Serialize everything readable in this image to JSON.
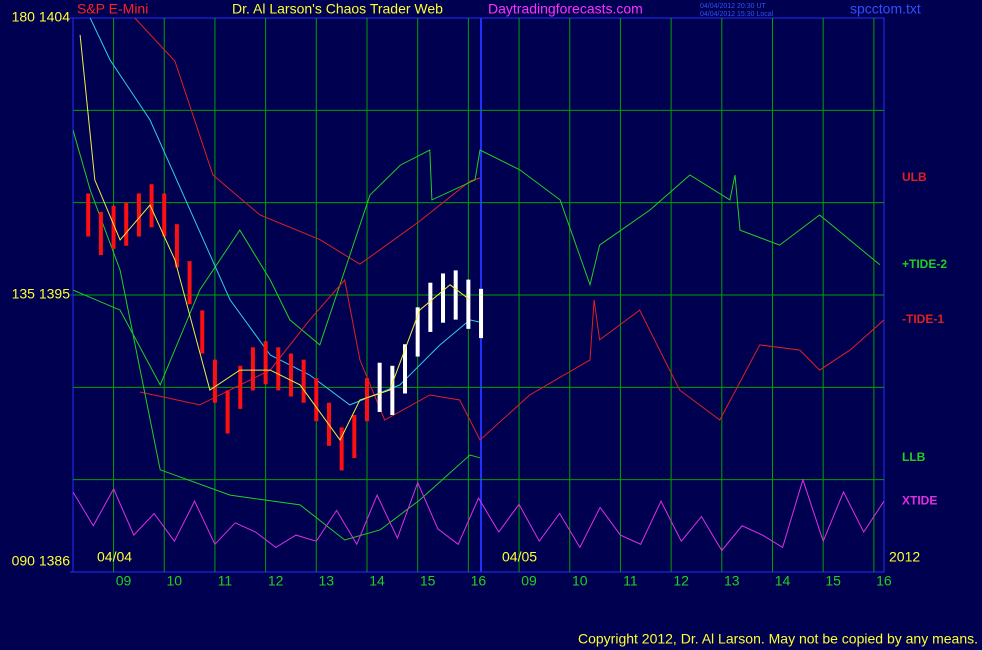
{
  "header": {
    "instrument": "S&P E-Mini",
    "title": "Dr. Al Larson's Chaos Trader Web",
    "site": "Daytradingforecasts.com",
    "stamp_ut": "04/04/2012 20:30 UT",
    "stamp_local": "04/04/2012 15:30 Local",
    "file": "spcctom.txt"
  },
  "chart_data": {
    "type": "line",
    "ylim": [
      1386,
      1404
    ],
    "yticks": [
      {
        "value": 1404,
        "label": "180 1404"
      },
      {
        "value": 1395,
        "label": "135 1395"
      },
      {
        "value": 1386,
        "label": "090 1386"
      }
    ],
    "ygrid": [
      1389,
      1392,
      1395,
      1398,
      1401
    ],
    "xlim": [
      0.2,
      16.2
    ],
    "xticks": [
      {
        "value": 1,
        "label": "09"
      },
      {
        "value": 2,
        "label": "10"
      },
      {
        "value": 3,
        "label": "11"
      },
      {
        "value": 4,
        "label": "12"
      },
      {
        "value": 5,
        "label": "13"
      },
      {
        "value": 6,
        "label": "14"
      },
      {
        "value": 7,
        "label": "15"
      },
      {
        "value": 8,
        "label": "16"
      },
      {
        "value": 9,
        "label": "09"
      },
      {
        "value": 10,
        "label": "10"
      },
      {
        "value": 11,
        "label": "11"
      },
      {
        "value": 12,
        "label": "12"
      },
      {
        "value": 13,
        "label": "13"
      },
      {
        "value": 14,
        "label": "14"
      },
      {
        "value": 15,
        "label": "15"
      },
      {
        "value": 16,
        "label": "16"
      }
    ],
    "grid": true,
    "date_labels": [
      "04/04",
      "04/05",
      "2012"
    ],
    "series": [
      {
        "name": "ULB",
        "color": "#e02020",
        "x": [
          1.42,
          2.21,
          2.96,
          3.89,
          5.07,
          5.86,
          7.04,
          8.03,
          8.23
        ],
        "values": [
          1404,
          1402.6,
          1398.9,
          1397.6,
          1396.8,
          1396.0,
          1397.4,
          1398.7,
          1398.8
        ]
      },
      {
        "name": "+TIDE-2",
        "color": "#20d020",
        "x": [
          0.2,
          1.13,
          1.92,
          2.7,
          3.49,
          4.09,
          4.48,
          5.07,
          6.06,
          6.66,
          7.24,
          7.28,
          8.13,
          8.23,
          9.02,
          9.81,
          10.4,
          10.59,
          11.58,
          12.37,
          13.16,
          13.26,
          13.36,
          14.14,
          14.93,
          16.12
        ],
        "values": [
          1395.16,
          1394.51,
          1392.08,
          1395.16,
          1397.11,
          1395.49,
          1394.19,
          1393.38,
          1398.25,
          1399.22,
          1399.71,
          1398.09,
          1398.74,
          1399.71,
          1399.06,
          1398.09,
          1395.33,
          1396.62,
          1397.76,
          1398.9,
          1398.09,
          1398.9,
          1397.11,
          1396.62,
          1397.6,
          1395.98
        ]
      },
      {
        "name": "-TIDE-1",
        "color": "#e02020",
        "x": [
          1.52,
          2.7,
          4.09,
          4.87,
          5.56,
          5.86,
          6.35,
          7.24,
          7.83,
          8.23,
          9.21,
          10.4,
          10.48,
          10.59,
          11.38,
          12.17,
          12.96,
          13.75,
          14.54,
          14.93,
          15.53,
          16.2
        ],
        "values": [
          1391.85,
          1391.43,
          1392.56,
          1394.19,
          1395.49,
          1392.89,
          1390.94,
          1391.75,
          1391.59,
          1390.29,
          1391.75,
          1392.89,
          1394.84,
          1393.54,
          1394.51,
          1391.91,
          1390.94,
          1393.38,
          1393.21,
          1392.56,
          1393.21,
          1394.19
        ]
      },
      {
        "name": "LLB",
        "color": "#20d020",
        "x": [
          0.2,
          0.54,
          1.13,
          1.92,
          3.3,
          4.68,
          5.56,
          6.26,
          7.04,
          8.03,
          8.23
        ],
        "values": [
          1400.36,
          1398.41,
          1395.81,
          1389.32,
          1388.5,
          1388.18,
          1387.04,
          1387.37,
          1388.34,
          1389.8,
          1389.71
        ]
      },
      {
        "name": "XTIDE",
        "color": "#e030e0",
        "x": [
          0.2,
          0.6,
          1.0,
          1.4,
          1.8,
          2.2,
          2.6,
          3.0,
          3.4,
          3.8,
          4.2,
          4.6,
          5.0,
          5.4,
          5.8,
          6.2,
          6.6,
          7.0,
          7.4,
          7.8,
          8.2,
          8.6,
          9.0,
          9.4,
          9.8,
          10.2,
          10.6,
          11.0,
          11.4,
          11.8,
          12.2,
          12.6,
          13.0,
          13.4,
          13.8,
          14.2,
          14.6,
          15.0,
          15.4,
          15.8,
          16.2
        ],
        "values": [
          1388.6,
          1387.5,
          1388.7,
          1387.2,
          1387.9,
          1387.0,
          1388.3,
          1386.9,
          1387.6,
          1387.3,
          1386.8,
          1387.2,
          1387.0,
          1388.0,
          1386.9,
          1388.5,
          1387.1,
          1388.9,
          1387.4,
          1386.9,
          1388.4,
          1387.3,
          1388.2,
          1387.0,
          1387.9,
          1386.8,
          1388.1,
          1387.2,
          1386.9,
          1388.3,
          1387.0,
          1387.8,
          1386.7,
          1387.5,
          1387.2,
          1386.8,
          1389.0,
          1387.0,
          1388.6,
          1387.3,
          1388.3
        ]
      },
      {
        "color": "#30d0e0",
        "x": [
          0.54,
          0.93,
          1.72,
          2.51,
          3.3,
          4.09,
          4.87,
          5.66,
          6.65,
          7.44,
          8.03,
          8.23
        ],
        "values": [
          1404,
          1402.64,
          1400.69,
          1397.76,
          1394.84,
          1393.05,
          1392.4,
          1391.43,
          1392.08,
          1393.38,
          1394.19,
          1394.12
        ]
      },
      {
        "kind": "range-bar",
        "color": "#ff1010",
        "x": [
          0.5,
          0.75,
          1,
          1.25,
          1.5,
          1.75,
          2,
          2.25,
          2.5,
          2.75,
          3,
          3.25,
          3.5,
          3.75,
          4,
          4.25,
          4.5,
          4.75,
          5,
          5.25,
          5.5,
          5.75,
          6
        ],
        "high": [
          1398.3,
          1397.7,
          1397.9,
          1398.0,
          1398.3,
          1398.6,
          1398.3,
          1397.3,
          1396.1,
          1394.5,
          1392.9,
          1391.9,
          1392.7,
          1393.3,
          1393.5,
          1393.3,
          1393.1,
          1392.9,
          1392.3,
          1391.5,
          1390.7,
          1391.1,
          1392.3
        ],
        "low": [
          1396.9,
          1396.3,
          1396.5,
          1396.6,
          1396.9,
          1397.2,
          1396.9,
          1395.9,
          1394.7,
          1393.1,
          1391.5,
          1390.5,
          1391.3,
          1391.9,
          1392.1,
          1391.9,
          1391.7,
          1391.5,
          1390.9,
          1390.1,
          1389.3,
          1389.7,
          1390.9
        ]
      },
      {
        "kind": "range-bar",
        "color": "#ffffff",
        "x": [
          6.25,
          6.5,
          6.75,
          7,
          7.25,
          7.5,
          7.75,
          8,
          8.25
        ],
        "high": [
          1392.8,
          1392.7,
          1393.4,
          1394.6,
          1395.4,
          1395.7,
          1395.8,
          1395.5,
          1395.2
        ],
        "low": [
          1391.2,
          1391.1,
          1391.8,
          1393.0,
          1393.8,
          1394.1,
          1394.2,
          1393.9,
          1393.6
        ]
      },
      {
        "color": "#f0f040",
        "x": [
          0.34,
          0.63,
          1.13,
          1.72,
          2.21,
          2.9,
          3.49,
          4.09,
          4.68,
          5.47,
          5.86,
          6.45,
          7.04,
          7.64,
          8.03
        ],
        "values": [
          1403.45,
          1398.74,
          1396.79,
          1397.92,
          1396.14,
          1391.91,
          1392.56,
          1392.56,
          1392.08,
          1390.29,
          1391.59,
          1391.91,
          1394.51,
          1395.33,
          1394.84
        ]
      }
    ]
  },
  "footer": "Copyright 2012, Dr. Al Larson. May not be copied by any means."
}
